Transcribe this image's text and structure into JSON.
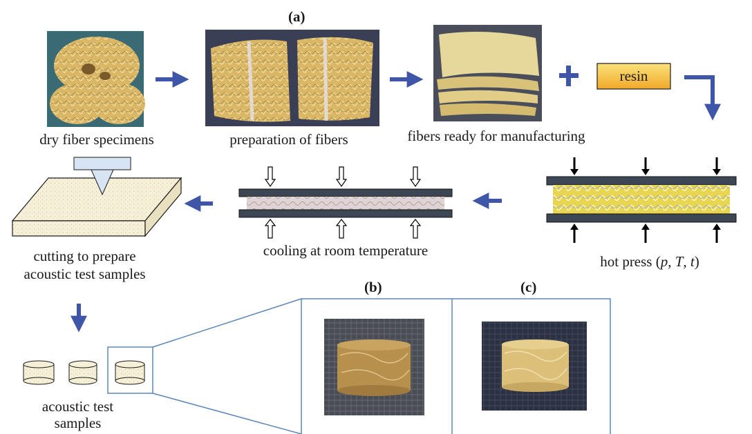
{
  "panels": {
    "a": "(a)",
    "b": "(b)",
    "c": "(c)"
  },
  "steps": {
    "dry_fiber": "dry fiber specimens",
    "preparation": "preparation of fibers",
    "ready": "fibers ready for manufacturing",
    "resin": "resin",
    "hot_press_prefix": "hot press (",
    "hot_press_p": "p",
    "hot_press_T": "T",
    "hot_press_t": "t",
    "hot_press_suffix": ")",
    "cooling": "cooling at room temperature",
    "cutting_line1": "cutting to prepare",
    "cutting_line2": "acoustic test samples",
    "samples_line1": "acoustic test",
    "samples_line2": "samples"
  },
  "colors": {
    "arrow": "#3f55a8",
    "plate": "#3d4754",
    "resin_fill": "#f6c542",
    "frame": "#5b86b8",
    "fiber": "#d9b766"
  }
}
